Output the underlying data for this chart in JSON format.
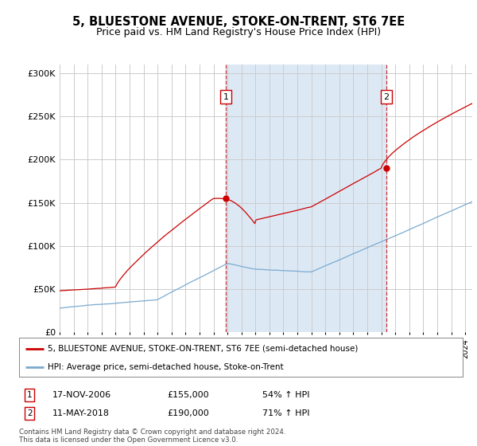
{
  "title": "5, BLUESTONE AVENUE, STOKE-ON-TRENT, ST6 7EE",
  "subtitle": "Price paid vs. HM Land Registry's House Price Index (HPI)",
  "background_color": "#ffffff",
  "plot_bg_color": "#ffffff",
  "shade_color": "#dce9f5",
  "legend_line1": "5, BLUESTONE AVENUE, STOKE-ON-TRENT, ST6 7EE (semi-detached house)",
  "legend_line2": "HPI: Average price, semi-detached house, Stoke-on-Trent",
  "annotation1_date": "17-NOV-2006",
  "annotation1_price": "£155,000",
  "annotation1_hpi": "54% ↑ HPI",
  "annotation2_date": "11-MAY-2018",
  "annotation2_price": "£190,000",
  "annotation2_hpi": "71% ↑ HPI",
  "footer": "Contains HM Land Registry data © Crown copyright and database right 2024.\nThis data is licensed under the Open Government Licence v3.0.",
  "red_color": "#cc0000",
  "blue_color": "#7aaad0",
  "sale1_x": 2006.88,
  "sale1_y": 155000,
  "sale2_x": 2018.36,
  "sale2_y": 190000,
  "ylim": [
    0,
    310000
  ],
  "xlim": [
    1995.0,
    2024.5
  ],
  "yticks": [
    0,
    50000,
    100000,
    150000,
    200000,
    250000,
    300000
  ],
  "grid_color": "#cccccc",
  "title_fontsize": 10.5,
  "subtitle_fontsize": 9.0
}
